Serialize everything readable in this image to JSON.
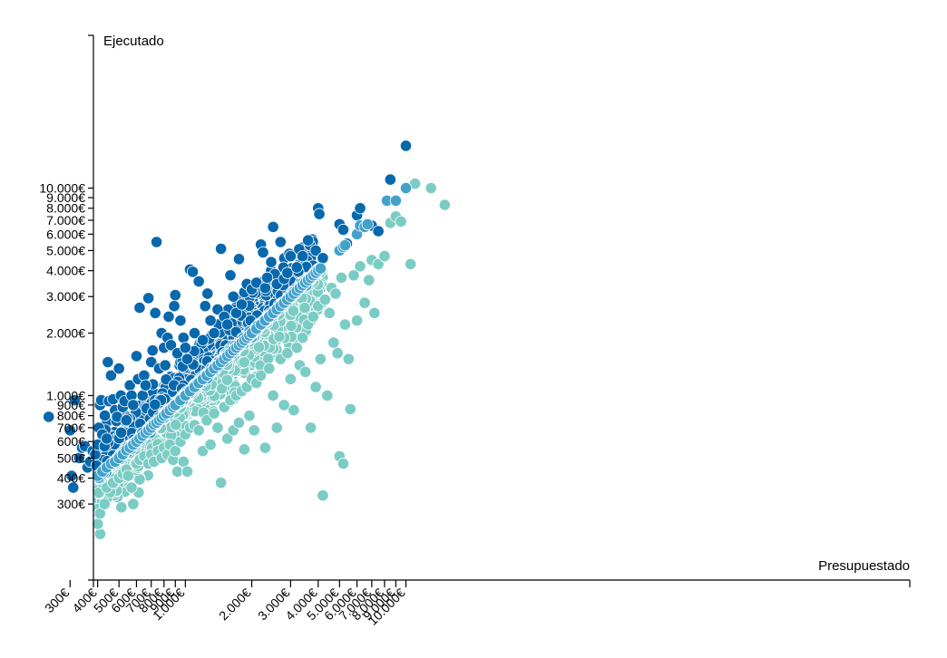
{
  "chart_data": {
    "type": "scatter",
    "title": "",
    "xlabel": "Presupuestado",
    "ylabel": "Ejecutado",
    "x_scale": "log",
    "y_scale": "log",
    "xlim": [
      230,
      15000
    ],
    "ylim": [
      270,
      16000
    ],
    "grid": false,
    "x_ticks": [
      {
        "value": 300,
        "label": "300€"
      },
      {
        "value": 400,
        "label": "400€"
      },
      {
        "value": 500,
        "label": "500€"
      },
      {
        "value": 600,
        "label": "600€"
      },
      {
        "value": 700,
        "label": "700€"
      },
      {
        "value": 800,
        "label": "800€"
      },
      {
        "value": 900,
        "label": "900€"
      },
      {
        "value": 1000,
        "label": "1.000€"
      },
      {
        "value": 2000,
        "label": "2.000€"
      },
      {
        "value": 3000,
        "label": "3.000€"
      },
      {
        "value": 4000,
        "label": "4.000€"
      },
      {
        "value": 5000,
        "label": "5.000€"
      },
      {
        "value": 6000,
        "label": "6.000€"
      },
      {
        "value": 7000,
        "label": "7.000€"
      },
      {
        "value": 8000,
        "label": "8.000€"
      },
      {
        "value": 9000,
        "label": "9.000€"
      },
      {
        "value": 10000,
        "label": "10.000€"
      }
    ],
    "y_ticks": [
      {
        "value": 300,
        "label": "300€"
      },
      {
        "value": 400,
        "label": "400€"
      },
      {
        "value": 500,
        "label": "500€"
      },
      {
        "value": 600,
        "label": "600€"
      },
      {
        "value": 700,
        "label": "700€"
      },
      {
        "value": 800,
        "label": "800€"
      },
      {
        "value": 900,
        "label": "900€"
      },
      {
        "value": 1000,
        "label": "1.000€"
      },
      {
        "value": 2000,
        "label": "2.000€"
      },
      {
        "value": 3000,
        "label": "3.000€"
      },
      {
        "value": 4000,
        "label": "4.000€"
      },
      {
        "value": 5000,
        "label": "5.000€"
      },
      {
        "value": 6000,
        "label": "6.000€"
      },
      {
        "value": 7000,
        "label": "7.000€"
      },
      {
        "value": 8000,
        "label": "8.000€"
      },
      {
        "value": 9000,
        "label": "9.000€"
      },
      {
        "value": 10000,
        "label": "10.000€"
      }
    ],
    "series": [
      {
        "color": "#0868ac",
        "points": [
          [
            240,
            790
          ],
          [
            300,
            680
          ],
          [
            305,
            410
          ],
          [
            310,
            360
          ],
          [
            315,
            950
          ],
          [
            330,
            500
          ],
          [
            340,
            560
          ],
          [
            350,
            570
          ],
          [
            360,
            450
          ],
          [
            370,
            480
          ],
          [
            380,
            540
          ],
          [
            390,
            520
          ],
          [
            395,
            460
          ],
          [
            400,
            580
          ],
          [
            405,
            700
          ],
          [
            410,
            900
          ],
          [
            415,
            950
          ],
          [
            420,
            650
          ],
          [
            430,
            570
          ],
          [
            440,
            620
          ],
          [
            445,
            1450
          ],
          [
            450,
            940
          ],
          [
            460,
            1250
          ],
          [
            470,
            960
          ],
          [
            480,
            850
          ],
          [
            490,
            790
          ],
          [
            500,
            1350
          ],
          [
            510,
            1000
          ],
          [
            520,
            880
          ],
          [
            530,
            940
          ],
          [
            540,
            760
          ],
          [
            560,
            1120
          ],
          [
            570,
            1000
          ],
          [
            580,
            900
          ],
          [
            600,
            1550
          ],
          [
            610,
            1200
          ],
          [
            620,
            2650
          ],
          [
            640,
            1000
          ],
          [
            650,
            1250
          ],
          [
            660,
            1120
          ],
          [
            680,
            2950
          ],
          [
            700,
            1450
          ],
          [
            710,
            1650
          ],
          [
            730,
            2500
          ],
          [
            740,
            5500
          ],
          [
            760,
            1350
          ],
          [
            780,
            2000
          ],
          [
            800,
            1700
          ],
          [
            810,
            1400
          ],
          [
            830,
            1900
          ],
          [
            840,
            2400
          ],
          [
            860,
            1750
          ],
          [
            890,
            2700
          ],
          [
            900,
            3050
          ],
          [
            920,
            1600
          ],
          [
            950,
            2300
          ],
          [
            980,
            1900
          ],
          [
            1000,
            1700
          ],
          [
            1020,
            1500
          ],
          [
            1050,
            4050
          ],
          [
            1080,
            3950
          ],
          [
            1100,
            2000
          ],
          [
            1150,
            3550
          ],
          [
            1200,
            1850
          ],
          [
            1230,
            2700
          ],
          [
            1260,
            3100
          ],
          [
            1300,
            2300
          ],
          [
            1350,
            2000
          ],
          [
            1400,
            2600
          ],
          [
            1450,
            5100
          ],
          [
            1500,
            2400
          ],
          [
            1550,
            2200
          ],
          [
            1600,
            3800
          ],
          [
            1650,
            3000
          ],
          [
            1700,
            2500
          ],
          [
            1750,
            4550
          ],
          [
            1800,
            2750
          ],
          [
            1850,
            3150
          ],
          [
            1900,
            3450
          ],
          [
            2000,
            3250
          ],
          [
            2100,
            3500
          ],
          [
            2200,
            5350
          ],
          [
            2250,
            4900
          ],
          [
            2300,
            3300
          ],
          [
            2350,
            3700
          ],
          [
            2450,
            4400
          ],
          [
            2500,
            6500
          ],
          [
            2600,
            3450
          ],
          [
            2700,
            5500
          ],
          [
            2800,
            3650
          ],
          [
            2900,
            3900
          ],
          [
            3000,
            4700
          ],
          [
            3200,
            4150
          ],
          [
            3400,
            4700
          ],
          [
            3600,
            5600
          ],
          [
            3900,
            5000
          ],
          [
            4000,
            8000
          ],
          [
            4050,
            7500
          ],
          [
            4200,
            4600
          ],
          [
            5000,
            6700
          ],
          [
            5200,
            6300
          ],
          [
            5400,
            5400
          ],
          [
            6000,
            7400
          ],
          [
            6200,
            8000
          ],
          [
            7000,
            6600
          ],
          [
            7500,
            6200
          ],
          [
            8500,
            11000
          ],
          [
            10000,
            16000
          ]
        ]
      },
      {
        "color": "#43a2ca",
        "points": [
          [
            400,
            410
          ],
          [
            420,
            430
          ],
          [
            440,
            450
          ],
          [
            460,
            470
          ],
          [
            480,
            480
          ],
          [
            500,
            500
          ],
          [
            520,
            520
          ],
          [
            540,
            545
          ],
          [
            560,
            560
          ],
          [
            580,
            580
          ],
          [
            600,
            600
          ],
          [
            620,
            620
          ],
          [
            640,
            640
          ],
          [
            660,
            660
          ],
          [
            680,
            680
          ],
          [
            700,
            700
          ],
          [
            720,
            725
          ],
          [
            740,
            740
          ],
          [
            760,
            760
          ],
          [
            780,
            780
          ],
          [
            800,
            800
          ],
          [
            820,
            820
          ],
          [
            850,
            850
          ],
          [
            880,
            880
          ],
          [
            900,
            900
          ],
          [
            950,
            950
          ],
          [
            1000,
            1000
          ],
          [
            1050,
            1050
          ],
          [
            1100,
            1100
          ],
          [
            1150,
            1150
          ],
          [
            1200,
            1200
          ],
          [
            1250,
            1250
          ],
          [
            1300,
            1300
          ],
          [
            1350,
            1350
          ],
          [
            1400,
            1400
          ],
          [
            1450,
            1450
          ],
          [
            1500,
            1500
          ],
          [
            1550,
            1550
          ],
          [
            1600,
            1600
          ],
          [
            1650,
            1650
          ],
          [
            1700,
            1700
          ],
          [
            1750,
            1750
          ],
          [
            1800,
            1800
          ],
          [
            1850,
            1850
          ],
          [
            1900,
            1900
          ],
          [
            1950,
            1950
          ],
          [
            2000,
            2000
          ],
          [
            2100,
            2100
          ],
          [
            2200,
            2200
          ],
          [
            2300,
            2300
          ],
          [
            2400,
            2400
          ],
          [
            2500,
            2500
          ],
          [
            2600,
            2600
          ],
          [
            2700,
            2700
          ],
          [
            2800,
            2800
          ],
          [
            2900,
            2900
          ],
          [
            3000,
            3000
          ],
          [
            3100,
            3100
          ],
          [
            3200,
            3200
          ],
          [
            3300,
            3300
          ],
          [
            3400,
            3400
          ],
          [
            3500,
            3500
          ],
          [
            3600,
            3600
          ],
          [
            3700,
            3700
          ],
          [
            3800,
            3800
          ],
          [
            3900,
            3900
          ],
          [
            4000,
            4000
          ],
          [
            4100,
            4100
          ],
          [
            5000,
            5000
          ],
          [
            5200,
            5200
          ],
          [
            5300,
            5300
          ],
          [
            6000,
            6000
          ],
          [
            6200,
            6600
          ],
          [
            6500,
            6500
          ],
          [
            6700,
            6700
          ],
          [
            8200,
            8700
          ],
          [
            9000,
            8700
          ],
          [
            10000,
            10000
          ]
        ]
      },
      {
        "color": "#7bccc4",
        "points": [
          [
            400,
            350
          ],
          [
            405,
            340
          ],
          [
            410,
            270
          ],
          [
            420,
            380
          ],
          [
            430,
            300
          ],
          [
            440,
            360
          ],
          [
            450,
            420
          ],
          [
            470,
            380
          ],
          [
            500,
            400
          ],
          [
            520,
            420
          ],
          [
            540,
            440
          ],
          [
            550,
            410
          ],
          [
            570,
            360
          ],
          [
            580,
            300
          ],
          [
            600,
            470
          ],
          [
            620,
            490
          ],
          [
            650,
            510
          ],
          [
            680,
            470
          ],
          [
            700,
            520
          ],
          [
            720,
            480
          ],
          [
            750,
            540
          ],
          [
            780,
            500
          ],
          [
            800,
            560
          ],
          [
            830,
            520
          ],
          [
            850,
            580
          ],
          [
            880,
            490
          ],
          [
            900,
            540
          ],
          [
            920,
            430
          ],
          [
            950,
            600
          ],
          [
            980,
            480
          ],
          [
            1000,
            650
          ],
          [
            1020,
            430
          ],
          [
            1050,
            700
          ],
          [
            1100,
            720
          ],
          [
            1150,
            680
          ],
          [
            1200,
            540
          ],
          [
            1250,
            760
          ],
          [
            1300,
            580
          ],
          [
            1350,
            820
          ],
          [
            1400,
            700
          ],
          [
            1450,
            380
          ],
          [
            1500,
            880
          ],
          [
            1550,
            620
          ],
          [
            1600,
            950
          ],
          [
            1650,
            680
          ],
          [
            1700,
            1000
          ],
          [
            1750,
            740
          ],
          [
            1800,
            1050
          ],
          [
            1850,
            550
          ],
          [
            1900,
            1100
          ],
          [
            1950,
            800
          ],
          [
            2000,
            1200
          ],
          [
            2050,
            680
          ],
          [
            2100,
            1150
          ],
          [
            2200,
            1250
          ],
          [
            2300,
            560
          ],
          [
            2400,
            1350
          ],
          [
            2500,
            1000
          ],
          [
            2600,
            700
          ],
          [
            2700,
            1500
          ],
          [
            2800,
            900
          ],
          [
            2900,
            1600
          ],
          [
            3000,
            1200
          ],
          [
            3100,
            850
          ],
          [
            3200,
            1700
          ],
          [
            3300,
            1400
          ],
          [
            3400,
            1900
          ],
          [
            3500,
            1300
          ],
          [
            3600,
            2200
          ],
          [
            3700,
            700
          ],
          [
            3800,
            2400
          ],
          [
            3900,
            1100
          ],
          [
            4000,
            2700
          ],
          [
            4100,
            1500
          ],
          [
            4200,
            330
          ],
          [
            4300,
            2900
          ],
          [
            4400,
            1000
          ],
          [
            4500,
            2500
          ],
          [
            4600,
            3300
          ],
          [
            4700,
            1800
          ],
          [
            4800,
            3100
          ],
          [
            4900,
            1600
          ],
          [
            5000,
            510
          ],
          [
            5100,
            3700
          ],
          [
            5200,
            470
          ],
          [
            5300,
            2200
          ],
          [
            5500,
            1500
          ],
          [
            5600,
            860
          ],
          [
            5800,
            3800
          ],
          [
            6000,
            2300
          ],
          [
            6200,
            4200
          ],
          [
            6500,
            2800
          ],
          [
            6800,
            3600
          ],
          [
            7000,
            4500
          ],
          [
            7200,
            2500
          ],
          [
            7500,
            4300
          ],
          [
            8000,
            4700
          ],
          [
            8500,
            6800
          ],
          [
            9000,
            7300
          ],
          [
            9500,
            6900
          ],
          [
            10500,
            4300
          ],
          [
            11000,
            10500
          ],
          [
            13000,
            10000
          ],
          [
            15000,
            8300
          ]
        ]
      }
    ]
  }
}
